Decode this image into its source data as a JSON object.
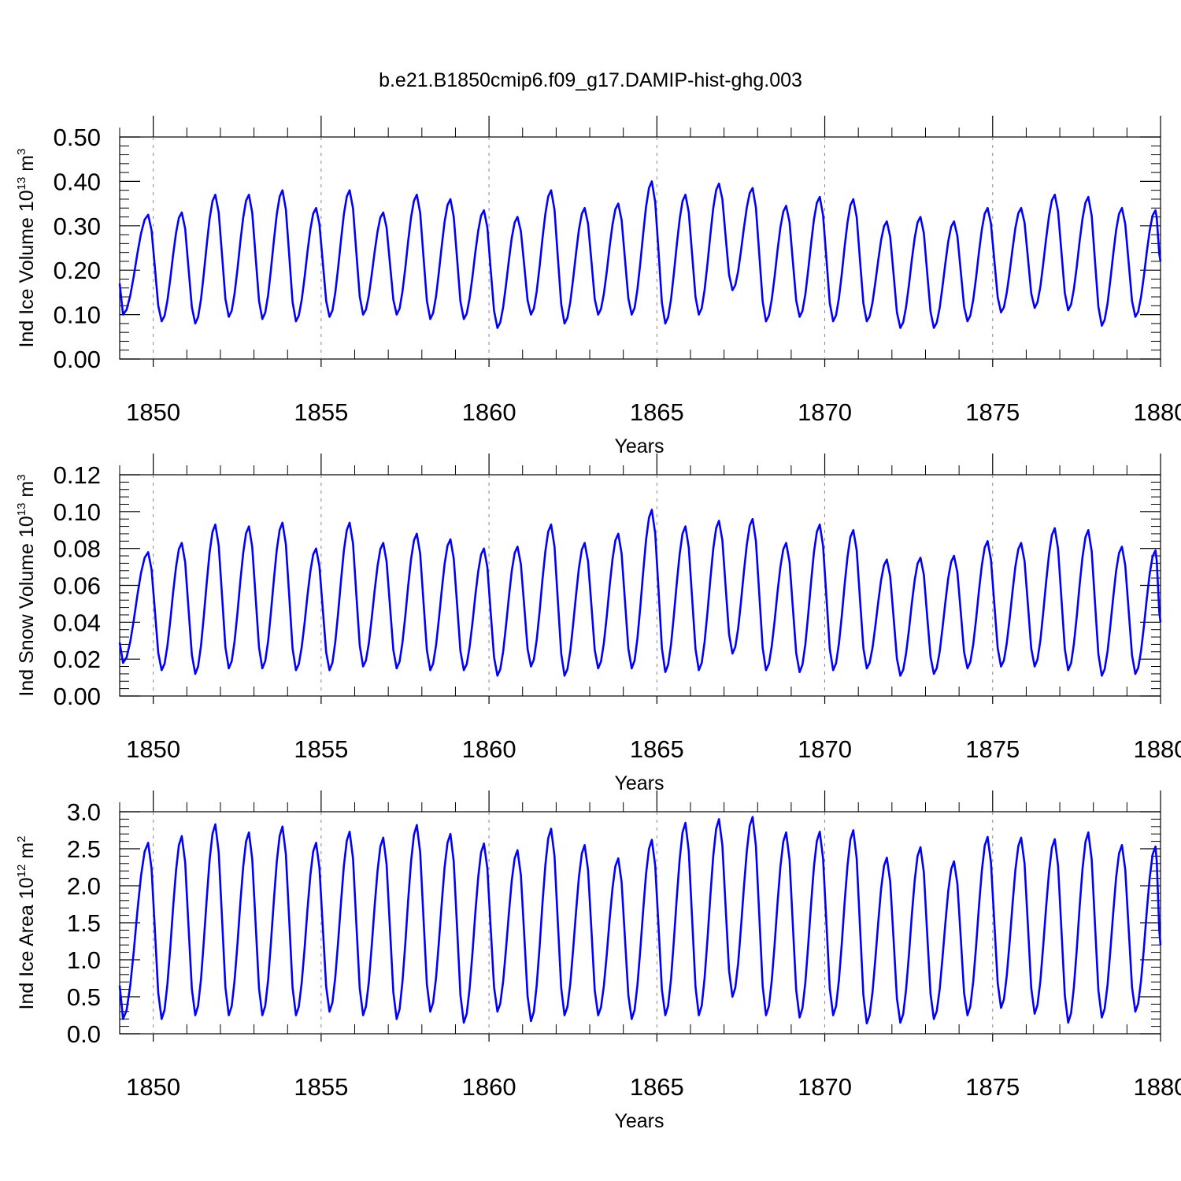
{
  "title": "b.e21.B1850cmip6.f09_g17.DAMIP-hist-ghg.003",
  "chart_data": [
    {
      "type": "line",
      "ylabel": "Ind Ice Volume 10",
      "ylabel_exp": "13",
      "ylabel_unit": " m",
      "ylabel_unit_exp": "3",
      "xlabel": "Years",
      "xlim": [
        1849,
        1880
      ],
      "ylim": [
        0,
        0.5
      ],
      "yticks": [
        0.0,
        0.1,
        0.2,
        0.3,
        0.4,
        0.5
      ],
      "ytick_labels": [
        "0.00",
        "0.10",
        "0.20",
        "0.30",
        "0.40",
        "0.50"
      ],
      "xticks": [
        1850,
        1855,
        1860,
        1865,
        1870,
        1875,
        1880
      ],
      "xtick_labels": [
        "1850",
        "1855",
        "1860",
        "1865",
        "1870",
        "1875",
        "1880"
      ],
      "color": "#0000ff",
      "series_params": {
        "start_value": 0.17,
        "trough_default": 0.09,
        "end_value": 0.22
      },
      "peaks": [
        0.325,
        0.33,
        0.37,
        0.37,
        0.38,
        0.34,
        0.38,
        0.33,
        0.37,
        0.36,
        0.335,
        0.32,
        0.38,
        0.34,
        0.35,
        0.4,
        0.37,
        0.395,
        0.385,
        0.345,
        0.365,
        0.36,
        0.31,
        0.32,
        0.31,
        0.34,
        0.34,
        0.37,
        0.365,
        0.34,
        0.335
      ],
      "troughs": [
        0.1,
        0.085,
        0.08,
        0.095,
        0.09,
        0.085,
        0.095,
        0.1,
        0.1,
        0.09,
        0.09,
        0.07,
        0.1,
        0.08,
        0.1,
        0.1,
        0.08,
        0.1,
        0.155,
        0.085,
        0.095,
        0.085,
        0.085,
        0.07,
        0.07,
        0.085,
        0.105,
        0.115,
        0.11,
        0.075,
        0.095
      ]
    },
    {
      "type": "line",
      "ylabel": "Ind Snow Volume 10",
      "ylabel_exp": "13",
      "ylabel_unit": " m",
      "ylabel_unit_exp": "3",
      "xlabel": "Years",
      "xlim": [
        1849,
        1880
      ],
      "ylim": [
        0,
        0.12
      ],
      "yticks": [
        0.0,
        0.02,
        0.04,
        0.06,
        0.08,
        0.1,
        0.12
      ],
      "ytick_labels": [
        "0.00",
        "0.02",
        "0.04",
        "0.06",
        "0.08",
        "0.10",
        "0.12"
      ],
      "xticks": [
        1850,
        1855,
        1860,
        1865,
        1870,
        1875,
        1880
      ],
      "xtick_labels": [
        "1850",
        "1855",
        "1860",
        "1865",
        "1870",
        "1875",
        "1880"
      ],
      "color": "#0000ff",
      "series_params": {
        "start_value": 0.029,
        "trough_default": 0.016,
        "end_value": 0.04
      },
      "peaks": [
        0.078,
        0.083,
        0.093,
        0.092,
        0.094,
        0.08,
        0.094,
        0.083,
        0.088,
        0.085,
        0.08,
        0.081,
        0.093,
        0.083,
        0.088,
        0.101,
        0.092,
        0.095,
        0.096,
        0.083,
        0.093,
        0.09,
        0.074,
        0.075,
        0.076,
        0.084,
        0.083,
        0.091,
        0.09,
        0.081,
        0.079
      ],
      "troughs": [
        0.018,
        0.014,
        0.012,
        0.015,
        0.015,
        0.014,
        0.014,
        0.016,
        0.015,
        0.014,
        0.014,
        0.011,
        0.016,
        0.011,
        0.015,
        0.015,
        0.013,
        0.014,
        0.023,
        0.014,
        0.013,
        0.014,
        0.015,
        0.011,
        0.012,
        0.015,
        0.016,
        0.016,
        0.014,
        0.011,
        0.012
      ]
    },
    {
      "type": "line",
      "ylabel": "Ind Ice Area 10",
      "ylabel_exp": "12",
      "ylabel_unit": " m",
      "ylabel_unit_exp": "2",
      "xlabel": "Years",
      "xlim": [
        1849,
        1880
      ],
      "ylim": [
        0,
        3.0
      ],
      "yticks": [
        0.0,
        0.5,
        1.0,
        1.5,
        2.0,
        2.5,
        3.0
      ],
      "ytick_labels": [
        "0.0",
        "0.5",
        "1.0",
        "1.5",
        "2.0",
        "2.5",
        "3.0"
      ],
      "xticks": [
        1850,
        1855,
        1860,
        1865,
        1870,
        1875,
        1880
      ],
      "xtick_labels": [
        "1850",
        "1855",
        "1860",
        "1865",
        "1870",
        "1875",
        "1880"
      ],
      "color": "#0000ff",
      "series_params": {
        "start_value": 0.65,
        "trough_default": 0.3,
        "end_value": 1.2
      },
      "peaks": [
        2.58,
        2.67,
        2.83,
        2.72,
        2.8,
        2.58,
        2.73,
        2.65,
        2.82,
        2.7,
        2.57,
        2.48,
        2.77,
        2.55,
        2.37,
        2.62,
        2.85,
        2.9,
        2.93,
        2.72,
        2.73,
        2.75,
        2.38,
        2.52,
        2.33,
        2.66,
        2.65,
        2.63,
        2.72,
        2.55,
        2.53
      ],
      "troughs": [
        0.2,
        0.2,
        0.25,
        0.25,
        0.25,
        0.25,
        0.3,
        0.25,
        0.2,
        0.3,
        0.15,
        0.3,
        0.17,
        0.25,
        0.25,
        0.2,
        0.25,
        0.25,
        0.5,
        0.25,
        0.22,
        0.25,
        0.14,
        0.15,
        0.2,
        0.25,
        0.35,
        0.27,
        0.15,
        0.22,
        0.3
      ]
    }
  ]
}
